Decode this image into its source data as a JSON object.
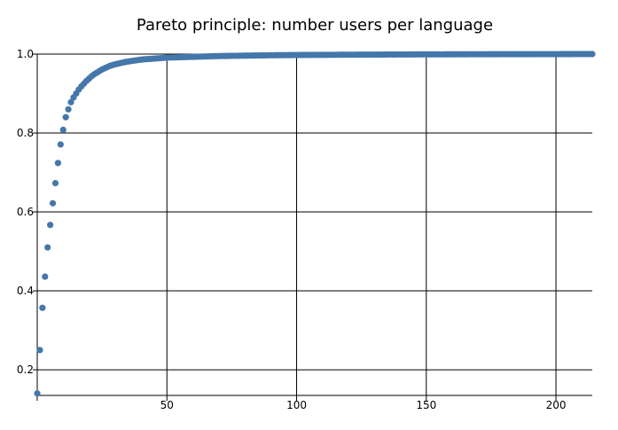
{
  "chart_data": {
    "type": "scatter",
    "title": "Pareto principle: number users per language",
    "xlabel": "",
    "ylabel": "",
    "xlim": [
      0,
      214
    ],
    "ylim": [
      0.135,
      1.0
    ],
    "x_ticks": [
      50,
      100,
      150,
      200
    ],
    "y_ticks": [
      0.2,
      0.4,
      0.6,
      0.8,
      1.0
    ],
    "x_tick_labels": [
      "50",
      "100",
      "150",
      "200"
    ],
    "y_tick_labels": [
      "0.2",
      "0.4",
      "0.6",
      "0.8",
      "1.0"
    ],
    "grid": true,
    "marker_color": "#4477aa",
    "series": [
      {
        "x": [
          0,
          1,
          2,
          3,
          4,
          5,
          6,
          7,
          8,
          9,
          10,
          11,
          12,
          13,
          14,
          15,
          16,
          17,
          18,
          19,
          20,
          21,
          22,
          23,
          24,
          25,
          26,
          27,
          28,
          29,
          30,
          32,
          34,
          36,
          38,
          40,
          42,
          44,
          46,
          48,
          50,
          55,
          60,
          65,
          70,
          75,
          80,
          85,
          90,
          95,
          100,
          110,
          120,
          130,
          140,
          150,
          160,
          170,
          180,
          190,
          200,
          205,
          210,
          214
        ],
        "y": [
          0.14,
          0.25,
          0.357,
          0.436,
          0.51,
          0.567,
          0.622,
          0.673,
          0.724,
          0.771,
          0.808,
          0.84,
          0.86,
          0.878,
          0.89,
          0.9,
          0.91,
          0.918,
          0.925,
          0.932,
          0.938,
          0.944,
          0.949,
          0.953,
          0.957,
          0.961,
          0.964,
          0.967,
          0.97,
          0.972,
          0.974,
          0.977,
          0.98,
          0.982,
          0.984,
          0.986,
          0.987,
          0.988,
          0.989,
          0.99,
          0.991,
          0.992,
          0.993,
          0.994,
          0.995,
          0.9955,
          0.996,
          0.9965,
          0.997,
          0.9973,
          0.9976,
          0.998,
          0.9984,
          0.9987,
          0.999,
          0.9992,
          0.9994,
          0.9996,
          0.9997,
          0.9998,
          0.9999,
          0.99995,
          1.0,
          1.0
        ]
      }
    ]
  }
}
